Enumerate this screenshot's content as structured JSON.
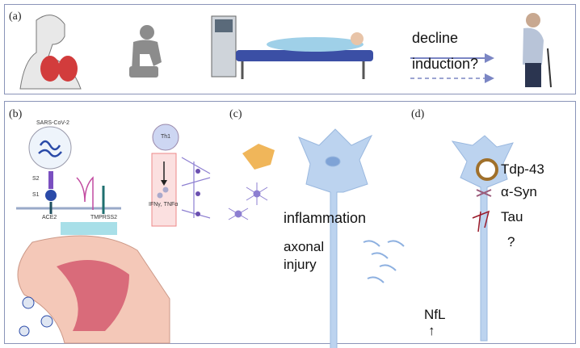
{
  "panels": {
    "a": {
      "label": "(a)",
      "decline": "decline",
      "induction": "induction?"
    },
    "b": {
      "label": "(b)",
      "virus": "SARS-CoV-2",
      "s2": "S2",
      "s1": "S1",
      "ace2": "ACE2",
      "tmprss2": "TMPRSS2",
      "th1": "Th1",
      "cytokines": "IFNγ, TNFα"
    },
    "c": {
      "label": "(c)",
      "inflammation": "inflammation",
      "axonal": "axonal",
      "injury": "injury",
      "nfl": "NfL",
      "up_arrow": "↑"
    },
    "d": {
      "label": "(d)",
      "tdp43": "Tdp-43",
      "asyn": "α-Syn",
      "tau": "Tau",
      "question": "?"
    }
  },
  "colors": {
    "border": "#8a94b8",
    "arrow": "#7b86c4",
    "neuron": "#bcd3ef",
    "microglia": "#f0b65a",
    "astrocyte": "#8d7fd1"
  }
}
